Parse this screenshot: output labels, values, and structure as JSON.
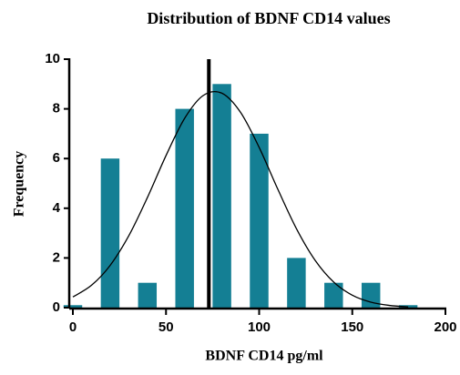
{
  "chart_data": {
    "type": "histogram",
    "title": "Distribution of BDNF CD14 values",
    "x_label": "BDNF CD14 pg/ml",
    "y_label": "Frequency",
    "bins": [
      -10,
      10,
      30,
      50,
      70,
      90,
      110,
      130,
      150,
      170,
      190
    ],
    "values": [
      0.1,
      6,
      1,
      8,
      9,
      7,
      2,
      1,
      1,
      0.1
    ],
    "color": "#147f94",
    "curve": {
      "x": [
        0,
        10,
        20,
        30,
        40,
        50,
        60,
        70,
        80,
        90,
        100,
        110,
        120,
        130,
        140,
        150,
        160,
        170,
        180
      ],
      "values": [
        0.43,
        0.9,
        1.7,
        2.89,
        4.43,
        6.12,
        7.62,
        8.54,
        8.63,
        7.86,
        6.45,
        4.77,
        3.18,
        1.91,
        1.03,
        0.5,
        0.22,
        0.09,
        0.03
      ],
      "color": "#000000"
    },
    "mean": 73,
    "xlim": [
      0,
      200
    ],
    "ylim": [
      0,
      10
    ],
    "xticks": [
      0,
      50,
      100,
      150,
      200
    ],
    "yticks": [
      0,
      2,
      4,
      6,
      8,
      10
    ]
  }
}
